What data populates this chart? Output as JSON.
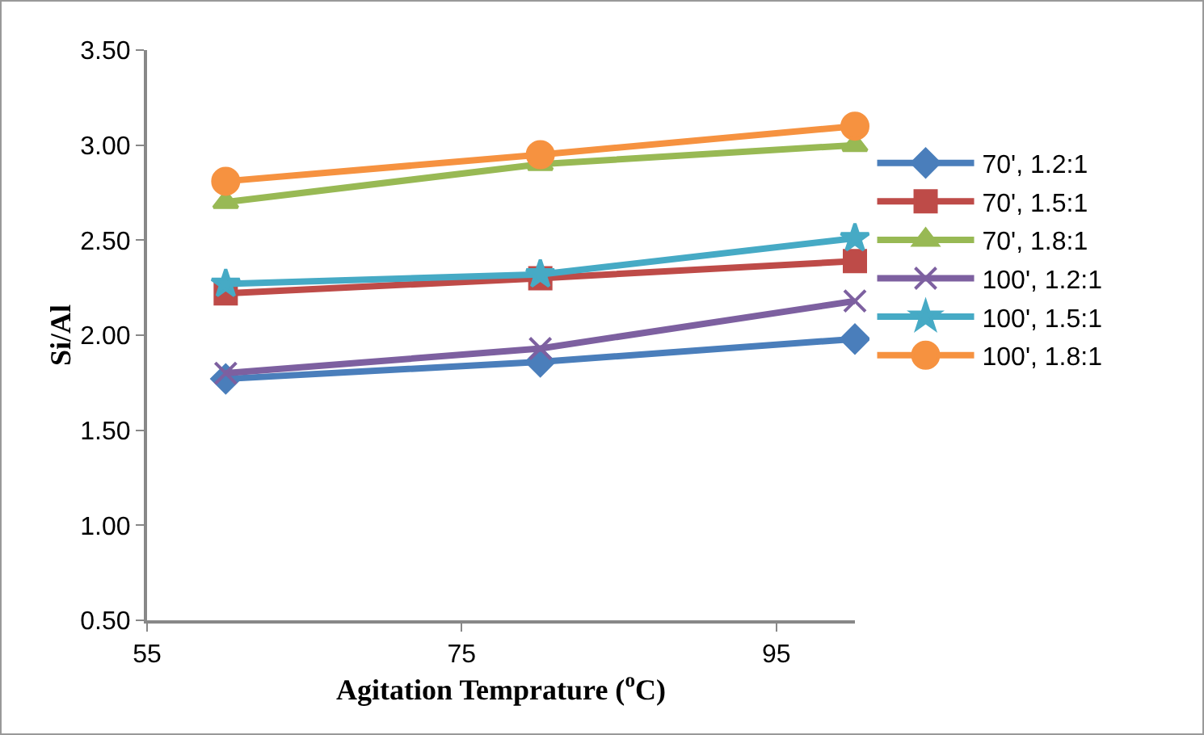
{
  "chart_data": {
    "type": "line",
    "xlabel": "Agitation Temprature ($^{o}$C)",
    "ylabel": "Si/Al",
    "x": [
      60,
      80,
      100
    ],
    "series": [
      {
        "name": "70', 1.2:1",
        "color": "#4a7ebb",
        "marker": "diamond",
        "values": [
          1.77,
          1.86,
          1.98
        ]
      },
      {
        "name": "70', 1.5:1",
        "color": "#be4b48",
        "marker": "square",
        "values": [
          2.22,
          2.3,
          2.39
        ]
      },
      {
        "name": "70', 1.8:1",
        "color": "#98b954",
        "marker": "triangle",
        "values": [
          2.7,
          2.9,
          3.0
        ]
      },
      {
        "name": "100', 1.2:1",
        "color": "#7d60a0",
        "marker": "cross",
        "values": [
          1.8,
          1.93,
          2.18
        ]
      },
      {
        "name": "100', 1.5:1",
        "color": "#46aac5",
        "marker": "star",
        "values": [
          2.27,
          2.32,
          2.51
        ]
      },
      {
        "name": "100', 1.8:1",
        "color": "#f69240",
        "marker": "circle",
        "values": [
          2.81,
          2.95,
          3.1
        ]
      }
    ],
    "xlim": [
      55,
      100
    ],
    "xticks": [
      55,
      75,
      95
    ],
    "ylim": [
      0.5,
      3.5
    ],
    "yticks": [
      {
        "value": 0.5,
        "label": "0.50"
      },
      {
        "value": 1,
        "label": "1.00"
      },
      {
        "value": 1.5,
        "label": "1.50"
      },
      {
        "value": 2,
        "label": "2.00"
      },
      {
        "value": 2.5,
        "label": "2.50"
      },
      {
        "value": 3,
        "label": "3.00"
      },
      {
        "value": 3.5,
        "label": "3.50"
      }
    ],
    "grid": false,
    "legend": "right",
    "line_style": "solid"
  }
}
